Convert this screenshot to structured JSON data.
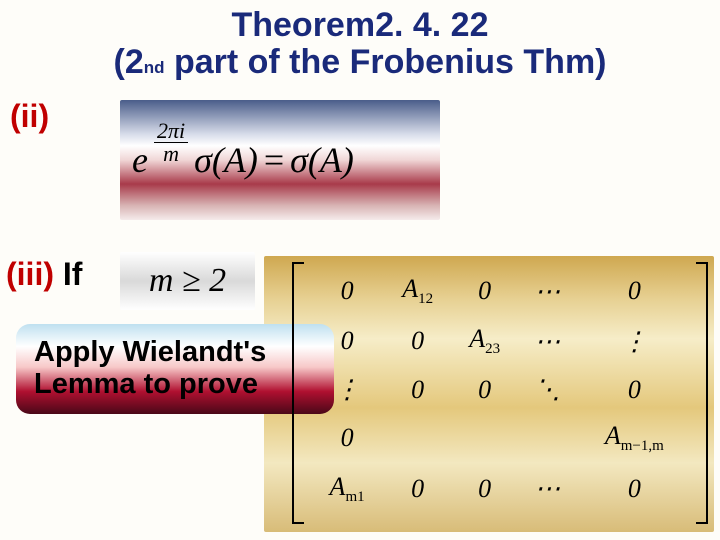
{
  "title": {
    "line1": "Theorem2. 4. 22",
    "line2_pre": "(2",
    "line2_sub": "nd",
    "line2_post": " part of the Frobenius Thm)",
    "color": "#1a2a7a",
    "fontsize": 34
  },
  "item_ii": {
    "label": "(ii)",
    "label_color": "#c00000",
    "formula": {
      "exp_num": "2πi",
      "exp_den": "m",
      "body_lhs": "σ(A)",
      "eq": "=",
      "body_rhs": "σ(A)",
      "gradient_colors": [
        "#4a5d8a",
        "#d5dae8",
        "#ffffff",
        "#f0d6d6",
        "#a83a4a",
        "#d8b4b4",
        "#f5ebeb"
      ]
    }
  },
  "item_iii": {
    "label_red": "(iii)",
    "label_black": " If",
    "condition": "m ≥ 2",
    "condition_gradient": [
      "#ffffff",
      "#d9d9d9",
      "#ffffff"
    ]
  },
  "note": {
    "line1": "Apply Wielandt's",
    "line2": "Lemma to prove",
    "gradient_colors": [
      "#bfe0f0",
      "#ffffff",
      "#f7c8c8",
      "#b01030",
      "#4a0818"
    ],
    "fontsize": 29
  },
  "matrix": {
    "background_gradient": [
      "#cfa850",
      "#e6cf90",
      "#f6edc8",
      "#e4c87c",
      "#f3e8c0",
      "#d8bc78"
    ],
    "rows": [
      [
        "0",
        "A_12",
        "0",
        "⋯",
        "0"
      ],
      [
        "0",
        "0",
        "A_23",
        "⋯",
        "⋮"
      ],
      [
        "⋮",
        "0",
        "0",
        "⋱",
        "0"
      ],
      [
        "0",
        "",
        "",
        "",
        "A_m-1,m"
      ],
      [
        "A_m1",
        "0",
        "0",
        "⋯",
        "0"
      ]
    ],
    "fontsize": 26
  }
}
